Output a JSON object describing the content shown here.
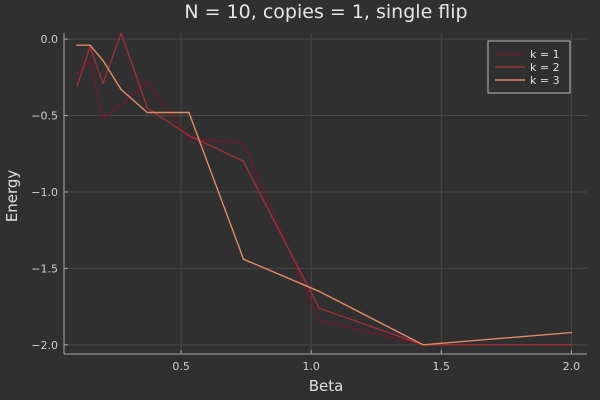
{
  "chart_data": {
    "type": "line",
    "title": "N = 10, copies = 1, single flip",
    "xlabel": "Beta",
    "ylabel": "Energy",
    "xlim": [
      0.05,
      2.06
    ],
    "ylim": [
      -2.06,
      0.04
    ],
    "xticks": [
      0.5,
      1.0,
      1.5,
      2.0
    ],
    "xtick_labels": [
      "0.5",
      "1.0",
      "1.5",
      "2.0"
    ],
    "yticks": [
      0.0,
      -0.5,
      -1.0,
      -1.5,
      -2.0
    ],
    "ytick_labels": [
      "0.0",
      "−0.5",
      "−1.0",
      "−1.5",
      "−2.0"
    ],
    "grid": true,
    "legend_position": "top-right",
    "background_color": "#303030",
    "grid_color": "#474747",
    "axis_color": "#a8a8a8",
    "series": [
      {
        "name": "k = 1",
        "color": "#6b1a2c",
        "x": [
          0.1,
          0.15,
          0.2,
          0.27,
          0.37,
          0.53,
          0.74,
          1.03,
          1.43,
          2.0
        ],
        "y": [
          -0.23,
          -0.14,
          -0.52,
          -0.43,
          -0.28,
          -0.65,
          -0.68,
          -1.84,
          -2.0,
          -2.0
        ]
      },
      {
        "name": "k = 2",
        "color": "#9e2f38",
        "x": [
          0.1,
          0.15,
          0.2,
          0.27,
          0.37,
          0.53,
          0.74,
          1.03,
          1.43,
          2.0
        ],
        "y": [
          -0.31,
          -0.05,
          -0.29,
          0.04,
          -0.45,
          -0.63,
          -0.8,
          -1.76,
          -2.0,
          -2.0
        ]
      },
      {
        "name": "k = 3",
        "color": "#e08a66",
        "x": [
          0.1,
          0.15,
          0.2,
          0.27,
          0.37,
          0.53,
          0.74,
          1.03,
          1.43,
          2.0
        ],
        "y": [
          -0.04,
          -0.04,
          -0.14,
          -0.33,
          -0.48,
          -0.48,
          -1.44,
          -1.65,
          -2.0,
          -1.92
        ]
      }
    ]
  }
}
